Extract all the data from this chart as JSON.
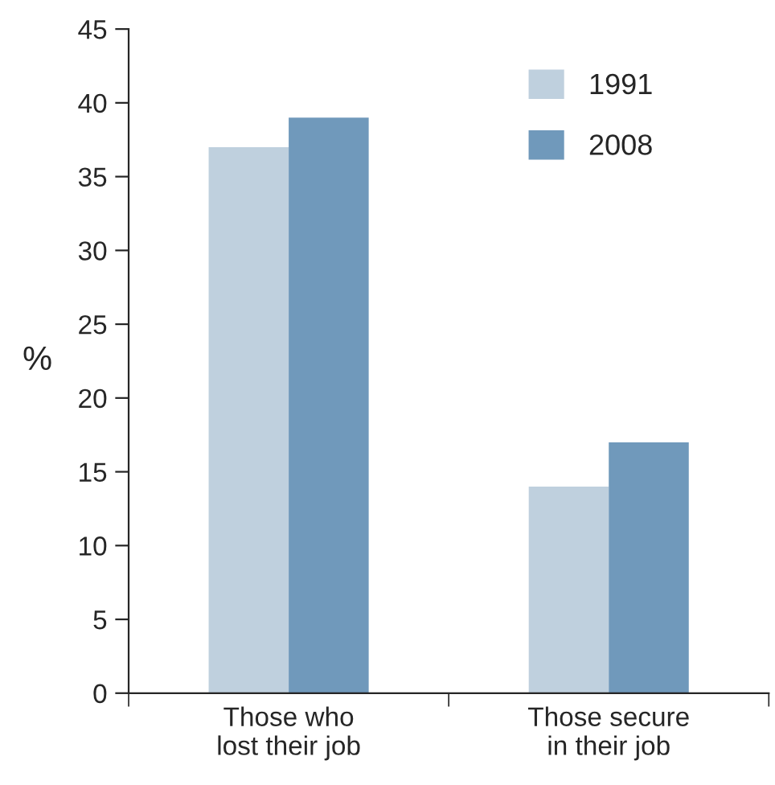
{
  "chart_data": {
    "type": "bar",
    "ylabel": "%",
    "categories": [
      "Those who\nlost their job",
      "Those secure\nin their job"
    ],
    "series": [
      {
        "name": "1991",
        "color": "#bfd0de",
        "values": [
          37,
          14
        ]
      },
      {
        "name": "2008",
        "color": "#7099bb",
        "values": [
          39,
          17
        ]
      }
    ],
    "ylim": [
      0,
      45
    ],
    "yticks": [
      0,
      5,
      10,
      15,
      20,
      25,
      30,
      35,
      40,
      45
    ],
    "grid": false,
    "legend": "top right"
  }
}
